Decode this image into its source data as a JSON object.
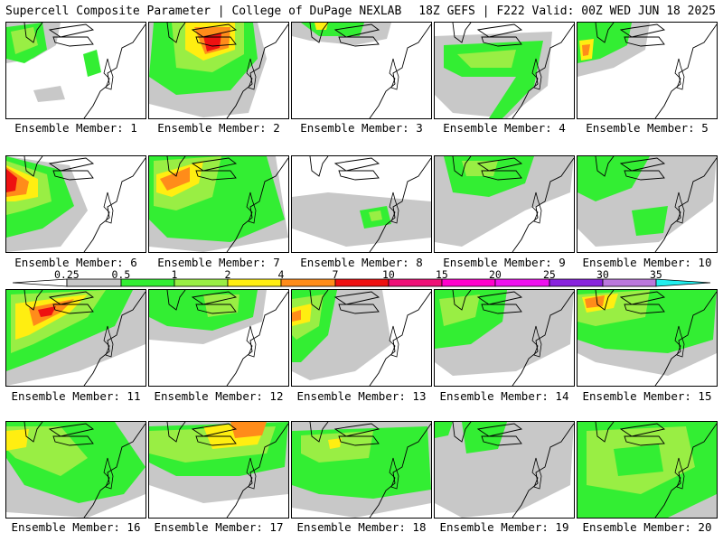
{
  "header": {
    "left": "Supercell Composite Parameter | College of DuPage NEXLAB",
    "right": "18Z GEFS | F222 Valid: 00Z WED JUN 18 2025"
  },
  "colorbar": {
    "labels": [
      "0.25",
      "0.5",
      "1",
      "2",
      "4",
      "7",
      "10",
      "15",
      "20",
      "25",
      "30",
      "35"
    ],
    "colors": [
      "#ffffff",
      "#c8c8c8",
      "#33ee33",
      "#99ee44",
      "#ffee11",
      "#ff8c1a",
      "#ee1111",
      "#ee1177",
      "#ff00cc",
      "#ee11ee",
      "#8822dd",
      "#bb77dd",
      "#22eeee"
    ]
  },
  "panels": [
    {
      "label": "Ensemble Member: 1",
      "member": 1
    },
    {
      "label": "Ensemble Member: 2",
      "member": 2
    },
    {
      "label": "Ensemble Member: 3",
      "member": 3
    },
    {
      "label": "Ensemble Member: 4",
      "member": 4
    },
    {
      "label": "Ensemble Member: 5",
      "member": 5
    },
    {
      "label": "Ensemble Member: 6",
      "member": 6
    },
    {
      "label": "Ensemble Member: 7",
      "member": 7
    },
    {
      "label": "Ensemble Member: 8",
      "member": 8
    },
    {
      "label": "Ensemble Member: 9",
      "member": 9
    },
    {
      "label": "Ensemble Member: 10",
      "member": 10
    },
    {
      "label": "Ensemble Member: 11",
      "member": 11
    },
    {
      "label": "Ensemble Member: 12",
      "member": 12
    },
    {
      "label": "Ensemble Member: 13",
      "member": 13
    },
    {
      "label": "Ensemble Member: 14",
      "member": 14
    },
    {
      "label": "Ensemble Member: 15",
      "member": 15
    },
    {
      "label": "Ensemble Member: 16",
      "member": 16
    },
    {
      "label": "Ensemble Member: 17",
      "member": 17
    },
    {
      "label": "Ensemble Member: 18",
      "member": 18
    },
    {
      "label": "Ensemble Member: 19",
      "member": 19
    },
    {
      "label": "Ensemble Member: 20",
      "member": 20
    }
  ]
}
